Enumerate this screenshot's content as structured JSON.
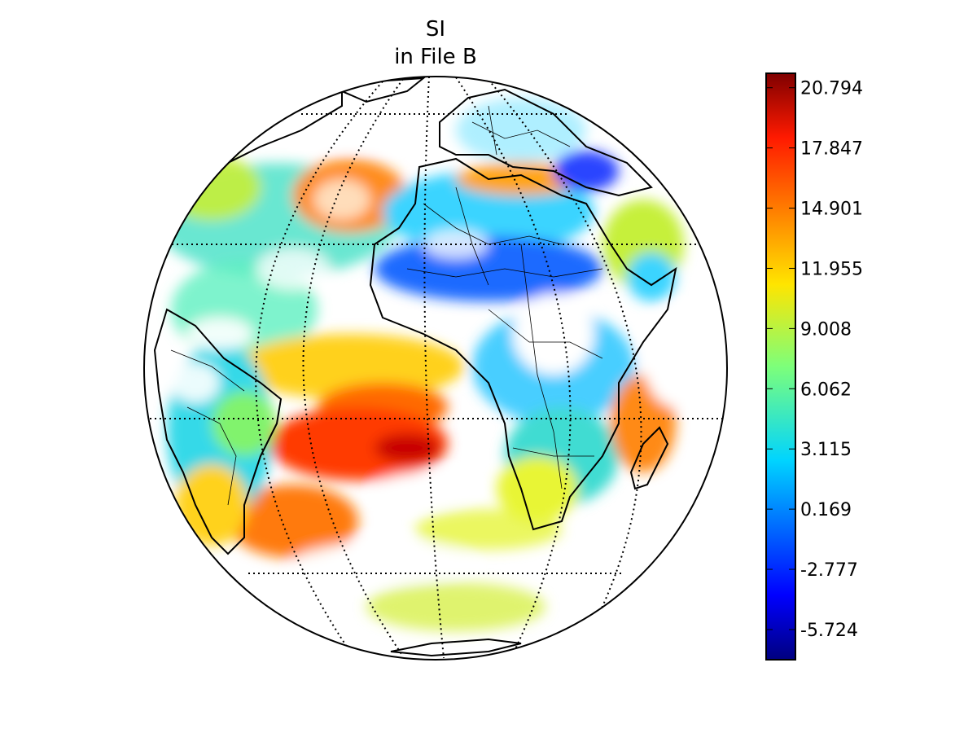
{
  "title": {
    "line1": "SI",
    "line2": "in File B"
  },
  "colorbar": {
    "colormap": "jet",
    "range": [
      -7.2,
      21.5
    ],
    "tick_labels": [
      "20.794",
      "17.847",
      "14.901",
      "11.955",
      "9.008",
      "6.062",
      "3.115",
      "0.169",
      "-2.777",
      "-5.724"
    ],
    "tick_values": [
      20.794,
      17.847,
      14.901,
      11.955,
      9.008,
      6.062,
      3.115,
      0.169,
      -2.777,
      -5.724
    ]
  },
  "map": {
    "projection": "orthographic",
    "graticule": "dotted",
    "coastlines": true,
    "country_borders": true
  },
  "chart_data": {
    "type": "heatmap",
    "title": "SI\nin File B",
    "colorbar_ticks": [
      20.794,
      17.847,
      14.901,
      11.955,
      9.008,
      6.062,
      3.115,
      0.169,
      -2.777,
      -5.724
    ],
    "value_range": [
      -7.2,
      21.5
    ]
  }
}
